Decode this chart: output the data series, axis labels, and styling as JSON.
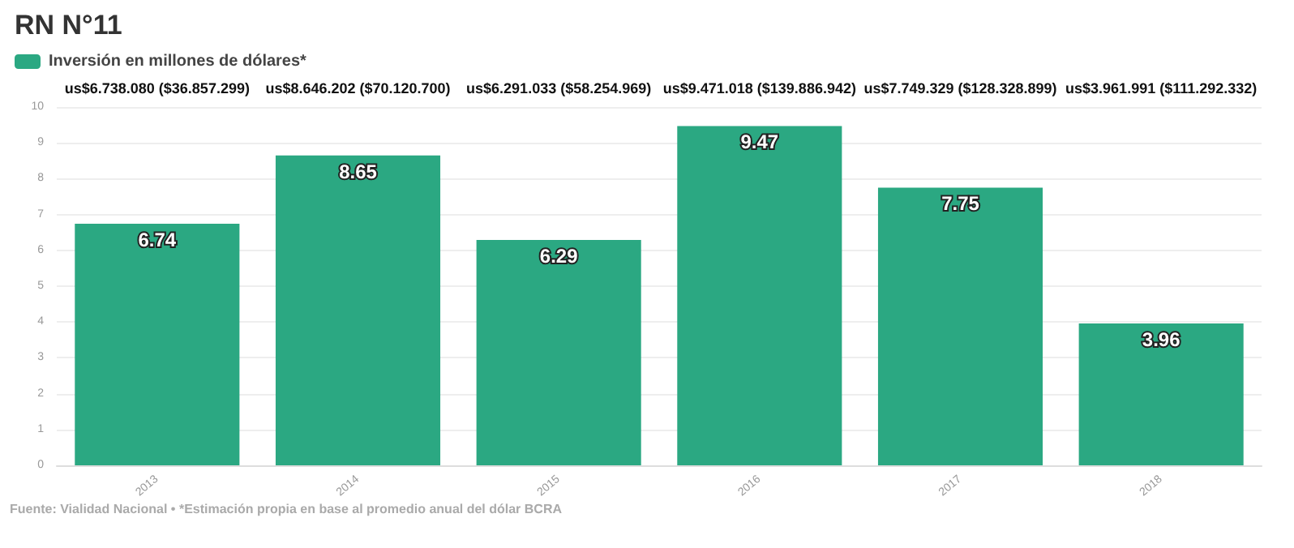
{
  "chart_data": {
    "type": "bar",
    "title": "RN N°11",
    "categories": [
      "2013",
      "2014",
      "2015",
      "2016",
      "2017",
      "2018"
    ],
    "series": [
      {
        "name": "Inversión en millones de dólares*",
        "color": "#2ba882",
        "values": [
          6.74,
          8.65,
          6.29,
          9.47,
          7.75,
          3.96
        ]
      }
    ],
    "ylim": [
      0,
      10
    ],
    "yticks": [
      0,
      1,
      2,
      3,
      4,
      5,
      6,
      7,
      8,
      9,
      10
    ],
    "grid": "y",
    "legend": "top left",
    "data_labels": true,
    "annotations": [
      "us$6.738.080 ($36.857.299)",
      "us$8.646.202 ($70.120.700)",
      "us$6.291.033 ($58.254.969)",
      "us$9.471.018 ($139.886.942)",
      "us$7.749.329 ($128.328.899)",
      "us$3.961.991 ($111.292.332)",
      "Fuente: Vialidad Nacional • *Estimación propia en base al promedio anual del dólar BCRA"
    ]
  }
}
